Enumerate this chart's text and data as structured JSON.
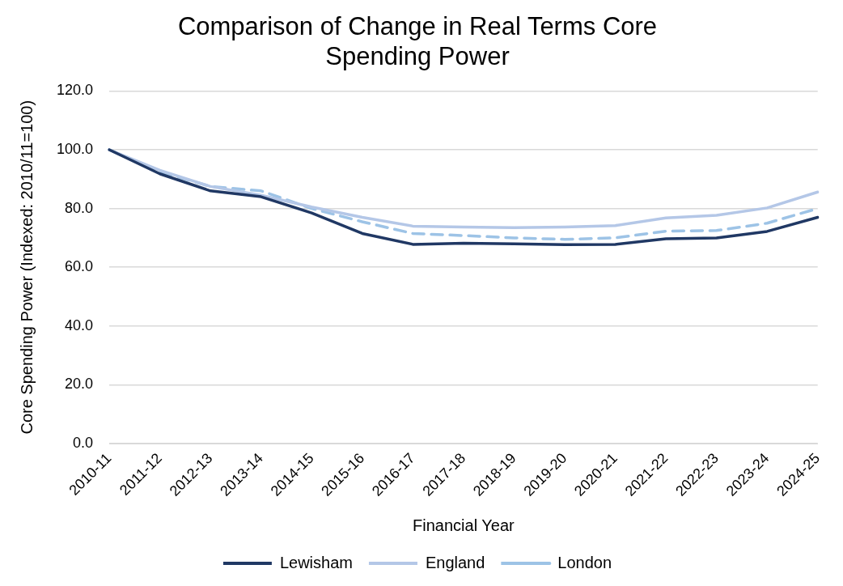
{
  "chart_data": {
    "type": "line",
    "title": "Comparison of Change in Real Terms Core Spending Power",
    "xlabel": "Financial Year",
    "ylabel": "Core Spending Power (Indexed: 2010/11=100)",
    "categories": [
      "2010-11",
      "2011-12",
      "2012-13",
      "2013-14",
      "2014-15",
      "2015-16",
      "2016-17",
      "2017-18",
      "2018-19",
      "2019-20",
      "2020-21",
      "2021-22",
      "2022-23",
      "2023-24",
      "2024-25"
    ],
    "series": [
      {
        "name": "Lewisham",
        "color": "#203864",
        "values": [
          100,
          91.8,
          86,
          84,
          78.5,
          71.5,
          67.8,
          68.2,
          68,
          67.7,
          67.8,
          69.7,
          70,
          72.2,
          77
        ],
        "line_style": "solid"
      },
      {
        "name": "England",
        "color": "#b4c7e7",
        "values": [
          100,
          93,
          87.5,
          84.5,
          80.5,
          77,
          74,
          73.7,
          73.5,
          73.7,
          74.2,
          76.8,
          77.7,
          80.2,
          85.6
        ],
        "line_style": "solid"
      },
      {
        "name": "London",
        "color": "#9dc3e6",
        "values": [
          100,
          92.5,
          87.5,
          86,
          80,
          75.5,
          71.5,
          70.8,
          70,
          69.5,
          70,
          72.3,
          72.5,
          75,
          80
        ],
        "line_style": "dashed"
      }
    ],
    "ylim": [
      0,
      120
    ],
    "yticks": [
      {
        "value": 0,
        "label": "0.0"
      },
      {
        "value": 20,
        "label": "20.0"
      },
      {
        "value": 40,
        "label": "40.0"
      },
      {
        "value": 60,
        "label": "60.0"
      },
      {
        "value": 80,
        "label": "80.0"
      },
      {
        "value": 100,
        "label": "100.0"
      },
      {
        "value": 120,
        "label": "120.0"
      }
    ],
    "grid": "y",
    "legend": "bottom",
    "marker": "none"
  }
}
